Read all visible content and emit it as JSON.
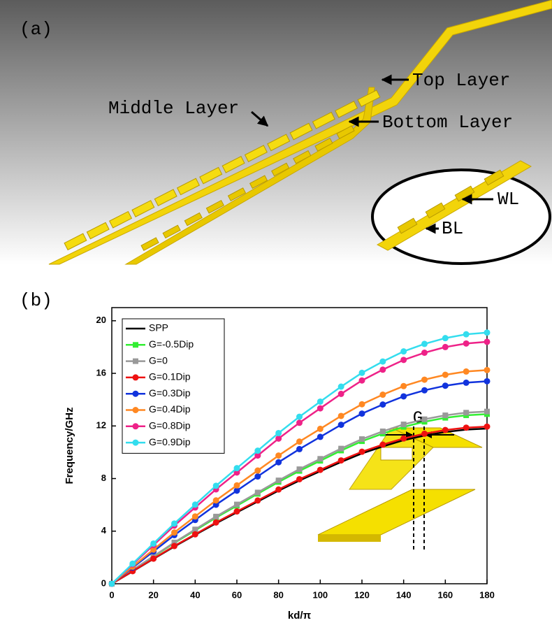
{
  "panel_a": {
    "label": "(a)",
    "labels": [
      "Top Layer",
      "Middle Layer",
      "Bottom Layer",
      "WL",
      "BL"
    ]
  },
  "chart_data": {
    "type": "line",
    "panel_label": "(b)",
    "x_label": "kd/π",
    "y_label": "Frequency/GHz",
    "annotation": "G",
    "x": [
      0,
      10,
      20,
      30,
      40,
      50,
      60,
      70,
      80,
      90,
      100,
      110,
      120,
      130,
      140,
      150,
      160,
      170,
      180
    ],
    "xlim": [
      0,
      180
    ],
    "xticks": [
      0,
      20,
      40,
      60,
      80,
      100,
      120,
      140,
      160,
      180
    ],
    "ylim": [
      0,
      21
    ],
    "yticks": [
      0,
      4,
      8,
      12,
      16,
      20
    ],
    "legend": "upper-left",
    "series": [
      {
        "name": "SPP",
        "color": "#000000",
        "marker": "none",
        "values": [
          0,
          0.94,
          1.89,
          2.83,
          3.72,
          4.6,
          5.43,
          6.25,
          7.08,
          7.85,
          8.56,
          9.26,
          9.91,
          10.44,
          10.92,
          11.27,
          11.54,
          11.72,
          11.8
        ]
      },
      {
        "name": "G=-0.5Dip",
        "color": "#33ee33",
        "marker": "square",
        "values": [
          0,
          1.03,
          2.06,
          3.1,
          4.06,
          5.03,
          5.93,
          6.84,
          7.74,
          8.58,
          9.35,
          10.13,
          10.84,
          11.42,
          11.93,
          12.32,
          12.62,
          12.81,
          12.9
        ]
      },
      {
        "name": "G=0",
        "color": "#999999",
        "marker": "square",
        "values": [
          0,
          1.05,
          2.1,
          3.14,
          4.13,
          5.11,
          6.03,
          6.94,
          7.86,
          8.71,
          9.5,
          10.28,
          11.0,
          11.59,
          12.12,
          12.51,
          12.81,
          13.01,
          13.1
        ]
      },
      {
        "name": "G=0.1Dip",
        "color": "#ee1111",
        "marker": "circle",
        "values": [
          0,
          0.96,
          1.91,
          2.87,
          3.76,
          4.66,
          5.5,
          6.33,
          7.17,
          7.95,
          8.66,
          9.38,
          10.04,
          10.58,
          11.05,
          11.41,
          11.69,
          11.87,
          11.95
        ]
      },
      {
        "name": "G=0.3Dip",
        "color": "#1133dd",
        "marker": "circle",
        "values": [
          0,
          1.23,
          2.46,
          3.7,
          4.85,
          6.01,
          7.08,
          8.16,
          9.24,
          10.24,
          11.17,
          12.09,
          12.94,
          13.63,
          14.25,
          14.71,
          15.06,
          15.29,
          15.4
        ]
      },
      {
        "name": "G=0.4Dip",
        "color": "#ff8822",
        "marker": "circle",
        "values": [
          0,
          1.3,
          2.6,
          3.9,
          5.12,
          6.34,
          7.48,
          8.61,
          9.75,
          10.81,
          11.78,
          12.76,
          13.65,
          14.38,
          15.03,
          15.52,
          15.89,
          16.14,
          16.25
        ]
      },
      {
        "name": "G=0.8Dip",
        "color": "#ee2288",
        "marker": "circle",
        "values": [
          0,
          1.47,
          2.94,
          4.42,
          5.8,
          7.18,
          8.46,
          9.75,
          11.04,
          12.24,
          13.34,
          14.44,
          15.46,
          16.28,
          17.02,
          17.57,
          18.0,
          18.27,
          18.4
        ]
      },
      {
        "name": "G=0.9Dip",
        "color": "#33ddee",
        "marker": "circle",
        "values": [
          0,
          1.53,
          3.06,
          4.58,
          6.02,
          7.45,
          8.79,
          10.12,
          11.46,
          12.7,
          13.85,
          14.99,
          16.04,
          16.9,
          17.67,
          18.24,
          18.68,
          18.97,
          19.1
        ]
      }
    ]
  }
}
